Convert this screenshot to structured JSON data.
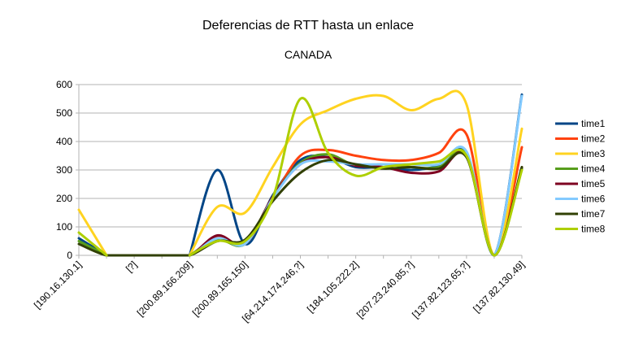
{
  "chart_data": {
    "type": "line",
    "title": "Deferencias de RTT hasta un enlace",
    "subtitle": "CANADA",
    "xlabel": "",
    "ylabel": "",
    "ylim": [
      0,
      600
    ],
    "yticks": [
      "0",
      "100",
      "200",
      "300",
      "400",
      "500",
      "600"
    ],
    "grid": true,
    "legend_position": "right",
    "categories": [
      "[190.16.130.1]",
      "",
      "[?]",
      "",
      "[200.89.166.209]",
      "",
      "[200.89.165.150]",
      "",
      "[64.214.174.246,?]",
      "",
      "[184.105.222.2]",
      "",
      "[207.23.240.85,?]",
      "",
      "[137.82.123.65,?]",
      "",
      "[137.82.130.49]"
    ],
    "series": [
      {
        "name": "time1",
        "color": "#004586",
        "values": [
          60,
          0,
          null,
          null,
          0,
          300,
          40,
          210,
          335,
          345,
          310,
          310,
          300,
          315,
          360,
          0,
          565
        ]
      },
      {
        "name": "time2",
        "color": "#ff420e",
        "values": [
          null,
          null,
          0,
          0,
          0,
          65,
          40,
          200,
          350,
          370,
          350,
          335,
          335,
          360,
          425,
          0,
          380
        ]
      },
      {
        "name": "time3",
        "color": "#ffd320",
        "values": [
          160,
          0,
          null,
          null,
          0,
          170,
          150,
          310,
          460,
          510,
          550,
          560,
          510,
          550,
          530,
          0,
          445
        ]
      },
      {
        "name": "time4",
        "color": "#579d1c",
        "values": [
          50,
          0,
          null,
          null,
          0,
          55,
          40,
          205,
          325,
          355,
          315,
          320,
          310,
          310,
          355,
          0,
          305
        ]
      },
      {
        "name": "time5",
        "color": "#7e0021",
        "values": [
          null,
          null,
          0,
          0,
          0,
          70,
          40,
          205,
          320,
          345,
          315,
          310,
          290,
          295,
          350,
          0,
          310
        ]
      },
      {
        "name": "time6",
        "color": "#83caff",
        "values": [
          null,
          null,
          0,
          0,
          0,
          60,
          40,
          200,
          320,
          330,
          320,
          320,
          320,
          320,
          365,
          0,
          560
        ]
      },
      {
        "name": "time7",
        "color": "#314004",
        "values": [
          40,
          0,
          0,
          0,
          0,
          50,
          55,
          190,
          290,
          335,
          320,
          305,
          310,
          305,
          345,
          0,
          310
        ]
      },
      {
        "name": "time8",
        "color": "#aecf00",
        "values": [
          80,
          0,
          null,
          null,
          0,
          50,
          50,
          200,
          550,
          360,
          280,
          310,
          320,
          330,
          350,
          0,
          300
        ]
      }
    ]
  }
}
